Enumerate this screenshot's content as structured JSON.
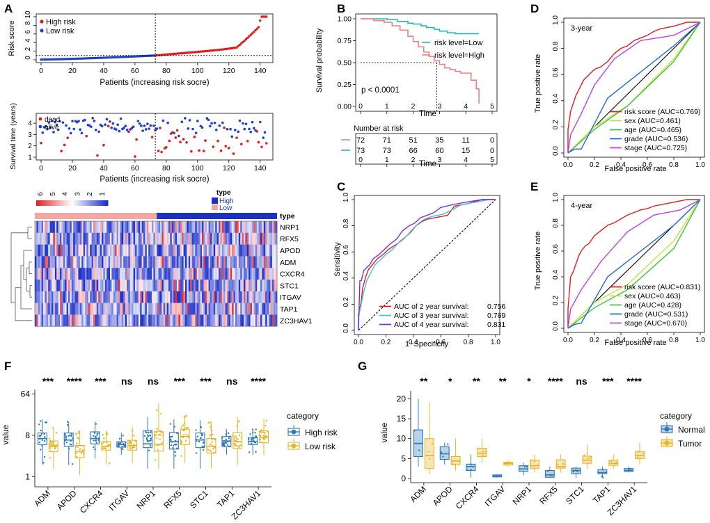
{
  "figure": {
    "panel_labels": [
      "A",
      "B",
      "C",
      "D",
      "E",
      "F",
      "G"
    ]
  },
  "colors": {
    "high": "#e31a1c",
    "low": "#1f3fcf",
    "km_low": "#22b5b5",
    "km_high": "#f08080",
    "roc_red": "#e41a1c",
    "roc_cyan": "#40c0e0",
    "roc_purple": "#7b2fd6",
    "sex": "#c8e03a",
    "age": "#38c838",
    "grade": "#1f68d8",
    "stage": "#c040e8",
    "box_blue": "#2e78b6",
    "box_gold": "#e8b422",
    "heat_low": "#1c2fc8",
    "heat_high": "#e8202a"
  },
  "chart_data": [
    {
      "id": "A1",
      "type": "scatter",
      "ylabel": "Risk score",
      "xlabel": "Patients (increasing risk socre)",
      "xlim": [
        0,
        145
      ],
      "ylim": [
        0,
        10
      ],
      "xticks": [
        0,
        20,
        40,
        60,
        80,
        100,
        120,
        140
      ],
      "yticks": [
        0,
        2,
        4,
        6,
        8,
        10
      ],
      "cutoff_index": 73,
      "cutoff_value": 1.0,
      "legend": [
        "High risk",
        "Low risk"
      ]
    },
    {
      "id": "A2",
      "type": "scatter",
      "ylabel": "Survival time (years)",
      "xlabel": "Patients (increasing risk socre)",
      "xlim": [
        0,
        145
      ],
      "ylim": [
        1,
        4.5
      ],
      "xticks": [
        0,
        20,
        40,
        60,
        80,
        100,
        120,
        140
      ],
      "yticks": [
        1,
        2,
        3,
        4
      ],
      "legend": [
        "dead",
        "alive"
      ]
    },
    {
      "id": "A3",
      "type": "heatmap",
      "genes": [
        "NRP1",
        "RFX5",
        "APOD",
        "ADM",
        "CXCR4",
        "STC1",
        "ITGAV",
        "TAP1",
        "ZC3HAV1"
      ],
      "color_scale": [
        "6",
        "5",
        "4",
        "3",
        "2",
        "1"
      ],
      "annotation_title": "type",
      "annotation_row_label": "type",
      "groups": [
        "High",
        "Low"
      ]
    },
    {
      "id": "B",
      "type": "line",
      "ylabel": "Survival probability",
      "xlabel": "Time",
      "xticks": [
        0,
        1,
        2,
        3,
        4,
        5
      ],
      "ytick_labels": [
        "0.00",
        "0.25",
        "0.50",
        "0.75",
        "1.00"
      ],
      "pvalue": "p < 0.0001",
      "median_time": 2.9,
      "series": [
        {
          "name": "risk level=Low",
          "x": [
            0,
            0.6,
            1.0,
            1.4,
            1.8,
            2.0,
            2.3,
            2.5,
            2.8,
            3.0,
            3.3,
            3.6,
            4.0,
            4.5
          ],
          "y": [
            1.0,
            1.0,
            0.99,
            0.97,
            0.95,
            0.94,
            0.92,
            0.9,
            0.88,
            0.86,
            0.84,
            0.83,
            0.83,
            0.83
          ]
        },
        {
          "name": "risk level=High",
          "x": [
            0,
            0.5,
            0.9,
            1.2,
            1.5,
            1.8,
            2.0,
            2.2,
            2.4,
            2.6,
            2.8,
            3.0,
            3.2,
            3.4,
            3.6,
            3.8,
            4.0,
            4.2,
            4.4,
            4.5
          ],
          "y": [
            1.0,
            0.98,
            0.96,
            0.92,
            0.87,
            0.8,
            0.74,
            0.68,
            0.62,
            0.57,
            0.52,
            0.48,
            0.44,
            0.42,
            0.4,
            0.38,
            0.38,
            0.3,
            0.2,
            0.03
          ]
        }
      ],
      "risk_table": {
        "title": "Number at risk",
        "rows": [
          {
            "group": "High",
            "values": [
              "72",
              "71",
              "51",
              "35",
              "11",
              "0"
            ]
          },
          {
            "group": "Low",
            "values": [
              "73",
              "73",
              "66",
              "60",
              "15",
              "0"
            ]
          }
        ],
        "xticks": [
          0,
          1,
          2,
          3,
          4,
          5
        ],
        "xlabel": "Time"
      }
    },
    {
      "id": "C",
      "type": "line",
      "xlabel": "1−Specificity",
      "ylabel": "Sensitivity",
      "ticks": [
        "0.0",
        "0.2",
        "0.4",
        "0.6",
        "0.8",
        "1.0"
      ],
      "series": [
        {
          "name": "AUC of 2 year survival:",
          "auc": "0.756",
          "x": [
            0,
            0,
            0.02,
            0.03,
            0.05,
            0.07,
            0.1,
            0.14,
            0.18,
            0.22,
            0.28,
            0.33,
            0.38,
            0.42,
            0.46,
            0.5,
            0.55,
            0.6,
            0.65,
            0.7,
            0.8,
            0.9,
            1.0
          ],
          "y": [
            0,
            0.12,
            0.22,
            0.32,
            0.4,
            0.46,
            0.5,
            0.55,
            0.58,
            0.62,
            0.66,
            0.7,
            0.75,
            0.8,
            0.83,
            0.85,
            0.86,
            0.87,
            0.88,
            0.95,
            0.97,
            1.0,
            1.0
          ]
        },
        {
          "name": "AUC of 3 year survival:",
          "auc": "0.769",
          "x": [
            0,
            0,
            0.02,
            0.04,
            0.06,
            0.09,
            0.12,
            0.16,
            0.2,
            0.25,
            0.3,
            0.35,
            0.4,
            0.44,
            0.48,
            0.53,
            0.58,
            0.62,
            0.68,
            0.75,
            0.85,
            0.95,
            1.0
          ],
          "y": [
            0,
            0.1,
            0.2,
            0.3,
            0.38,
            0.44,
            0.5,
            0.54,
            0.58,
            0.62,
            0.68,
            0.72,
            0.78,
            0.82,
            0.85,
            0.87,
            0.88,
            0.89,
            0.92,
            0.96,
            0.98,
            1.0,
            1.0
          ]
        },
        {
          "name": "AUC of 4 year survival:",
          "auc": "0.831",
          "x": [
            0,
            0.01,
            0.02,
            0.04,
            0.06,
            0.08,
            0.11,
            0.15,
            0.19,
            0.23,
            0.28,
            0.32,
            0.37,
            0.41,
            0.45,
            0.5,
            0.55,
            0.6,
            0.68,
            0.78,
            0.9,
            1.0
          ],
          "y": [
            0,
            0.38,
            0.38,
            0.46,
            0.48,
            0.5,
            0.55,
            0.58,
            0.62,
            0.66,
            0.7,
            0.76,
            0.8,
            0.82,
            0.86,
            0.88,
            0.9,
            0.94,
            0.96,
            0.98,
            1.0,
            1.0
          ]
        }
      ]
    },
    {
      "id": "D",
      "type": "line",
      "title": "3-year",
      "xlabel": "False positive rate",
      "ylabel": "True positive rate",
      "ticks": [
        "0.0",
        "0.2",
        "0.4",
        "0.6",
        "0.8",
        "1.0"
      ],
      "series": [
        {
          "name": "risk score (AUC=0.769)",
          "x": [
            0,
            0,
            0.02,
            0.04,
            0.06,
            0.09,
            0.12,
            0.16,
            0.2,
            0.25,
            0.3,
            0.35,
            0.4,
            0.45,
            0.5,
            0.55,
            0.6,
            0.65,
            0.7,
            0.8,
            0.9,
            1.0
          ],
          "y": [
            0,
            0.18,
            0.32,
            0.38,
            0.44,
            0.5,
            0.56,
            0.6,
            0.64,
            0.66,
            0.7,
            0.76,
            0.8,
            0.82,
            0.86,
            0.88,
            0.9,
            0.93,
            0.95,
            0.97,
            1.0,
            1.0
          ]
        },
        {
          "name": "sex (AUC=0.461)",
          "x": [
            0,
            0.2,
            0.45,
            0.8,
            1.0
          ],
          "y": [
            0,
            0.2,
            0.36,
            0.72,
            1.0
          ]
        },
        {
          "name": "age (AUC=0.465)",
          "x": [
            0,
            0.2,
            0.45,
            0.8,
            1.0
          ],
          "y": [
            0,
            0.18,
            0.36,
            0.7,
            1.0
          ]
        },
        {
          "name": "grade (AUC=0.536)",
          "x": [
            0,
            0.05,
            0.1,
            0.3,
            0.55,
            0.8,
            1.0
          ],
          "y": [
            0,
            0.03,
            0.03,
            0.42,
            0.62,
            0.82,
            1.0
          ]
        },
        {
          "name": "stage (AUC=0.725)",
          "x": [
            0,
            0.02,
            0.1,
            0.2,
            0.35,
            0.55,
            0.8,
            1.0
          ],
          "y": [
            0,
            0.14,
            0.3,
            0.52,
            0.72,
            0.86,
            0.9,
            1.0
          ]
        }
      ]
    },
    {
      "id": "E",
      "type": "line",
      "title": "4-year",
      "xlabel": "False positive rate",
      "ylabel": "True positive rate",
      "ticks": [
        "0.0",
        "0.2",
        "0.4",
        "0.6",
        "0.8",
        "1.0"
      ],
      "series": [
        {
          "name": "risk score (AUC=0.831)",
          "x": [
            0,
            0,
            0.02,
            0.04,
            0.06,
            0.08,
            0.1,
            0.13,
            0.16,
            0.2,
            0.25,
            0.3,
            0.35,
            0.4,
            0.45,
            0.5,
            0.55,
            0.6,
            0.65,
            0.7,
            0.8,
            0.9,
            1.0
          ],
          "y": [
            0,
            0.15,
            0.4,
            0.44,
            0.5,
            0.56,
            0.6,
            0.64,
            0.66,
            0.72,
            0.76,
            0.8,
            0.82,
            0.85,
            0.88,
            0.9,
            0.92,
            0.93,
            0.95,
            0.96,
            0.98,
            1.0,
            1.0
          ]
        },
        {
          "name": "sex (AUC=0.463)",
          "x": [
            0,
            0.2,
            0.45,
            0.8,
            1.0
          ],
          "y": [
            0,
            0.2,
            0.34,
            0.68,
            1.0
          ]
        },
        {
          "name": "age (AUC=0.428)",
          "x": [
            0,
            0.2,
            0.45,
            0.8,
            1.0
          ],
          "y": [
            0,
            0.16,
            0.3,
            0.62,
            1.0
          ]
        },
        {
          "name": "grade (AUC=0.531)",
          "x": [
            0,
            0.05,
            0.1,
            0.3,
            0.55,
            0.8,
            1.0
          ],
          "y": [
            0,
            0.03,
            0.04,
            0.4,
            0.6,
            0.8,
            1.0
          ]
        },
        {
          "name": "stage (AUC=0.670)",
          "x": [
            0,
            0.02,
            0.1,
            0.25,
            0.45,
            0.65,
            0.85,
            1.0
          ],
          "y": [
            0,
            0.15,
            0.3,
            0.52,
            0.75,
            0.88,
            0.92,
            1.0
          ]
        }
      ]
    },
    {
      "id": "F",
      "type": "bar",
      "subtype": "boxplot",
      "ylabel": "value",
      "yscale": "log2",
      "ytick_labels": [
        "1",
        "8",
        "64"
      ],
      "categories": [
        "ADM",
        "APOD",
        "CXCR4",
        "ITGAV",
        "NRP1",
        "RFX5",
        "STC1",
        "TAP1",
        "ZC3HAV1"
      ],
      "significance": [
        "***",
        "****",
        "***",
        "ns",
        "ns",
        "***",
        "***",
        "ns",
        "****"
      ],
      "legend_title": "category",
      "series": [
        {
          "name": "High risk",
          "q1": [
            5.0,
            4.6,
            5.2,
            4.4,
            4.3,
            4.0,
            4.3,
            4.5,
            5.0
          ],
          "median": [
            6.8,
            6.3,
            6.8,
            5.0,
            5.2,
            5.8,
            6.3,
            6.0,
            5.8
          ],
          "q3": [
            9.0,
            9.0,
            9.5,
            5.8,
            10.0,
            9.2,
            9.0,
            7.5,
            7.2
          ],
          "min": [
            1.8,
            1.8,
            2.5,
            3.0,
            1.5,
            1.5,
            1.5,
            3.0,
            3.0
          ],
          "max": [
            18,
            16,
            16,
            9,
            20,
            18,
            17,
            11,
            11
          ]
        },
        {
          "name": "Low risk",
          "q1": [
            3.5,
            2.6,
            3.8,
            3.8,
            3.6,
            5.0,
            3.3,
            4.2,
            5.5
          ],
          "median": [
            4.6,
            3.5,
            4.6,
            4.8,
            5.0,
            7.5,
            4.6,
            5.8,
            7.2
          ],
          "q3": [
            6.0,
            4.8,
            5.8,
            6.2,
            9.8,
            10.8,
            6.8,
            9.2,
            10.0
          ],
          "min": [
            1.5,
            1.1,
            1.8,
            2.0,
            1.5,
            2.0,
            1.5,
            1.8,
            3.0
          ],
          "max": [
            12,
            10,
            10,
            12,
            40,
            22,
            16,
            20,
            18
          ]
        }
      ]
    },
    {
      "id": "G",
      "type": "bar",
      "subtype": "boxplot",
      "ylabel": "value",
      "ylim": [
        0,
        22
      ],
      "yticks": [
        0,
        5,
        10,
        15,
        20
      ],
      "categories": [
        "ADM",
        "APOD",
        "CXCR4",
        "ITGAV",
        "NRP1",
        "RFX5",
        "STC1",
        "TAP1",
        "ZC3HAV1"
      ],
      "significance": [
        "**",
        "*",
        "**",
        "**",
        "*",
        "****",
        "ns",
        "***",
        "****"
      ],
      "legend_title": "category",
      "series": [
        {
          "name": "Normal",
          "q1": [
            5.5,
            4.8,
            2.0,
            0.4,
            1.8,
            0.3,
            1.2,
            1.2,
            1.8
          ],
          "median": [
            8.8,
            6.2,
            3.0,
            0.6,
            2.4,
            0.9,
            2.0,
            1.5,
            2.0
          ],
          "q3": [
            12.2,
            8.0,
            3.6,
            0.9,
            3.2,
            2.0,
            2.6,
            2.2,
            2.5
          ],
          "min": [
            3.0,
            3.5,
            0.2,
            0.2,
            0.8,
            0.1,
            0.2,
            0.2,
            1.5
          ],
          "max": [
            20.0,
            9.0,
            6.0,
            1.0,
            4.0,
            3.0,
            3.0,
            3.0,
            3.0
          ]
        },
        {
          "name": "Tumor",
          "q1": [
            2.5,
            3.5,
            5.5,
            3.4,
            2.5,
            2.6,
            3.8,
            3.3,
            5.0
          ],
          "median": [
            5.8,
            4.4,
            6.3,
            3.8,
            3.2,
            3.0,
            4.6,
            3.8,
            5.8
          ],
          "q3": [
            10.0,
            5.5,
            7.6,
            4.1,
            4.6,
            4.7,
            5.6,
            4.6,
            6.8
          ],
          "min": [
            1.0,
            2.0,
            4.0,
            3.0,
            1.5,
            1.5,
            2.5,
            2.5,
            3.5
          ],
          "max": [
            19.0,
            10.0,
            10.0,
            4.5,
            6.0,
            6.0,
            8.5,
            6.0,
            9.0
          ]
        }
      ]
    }
  ]
}
